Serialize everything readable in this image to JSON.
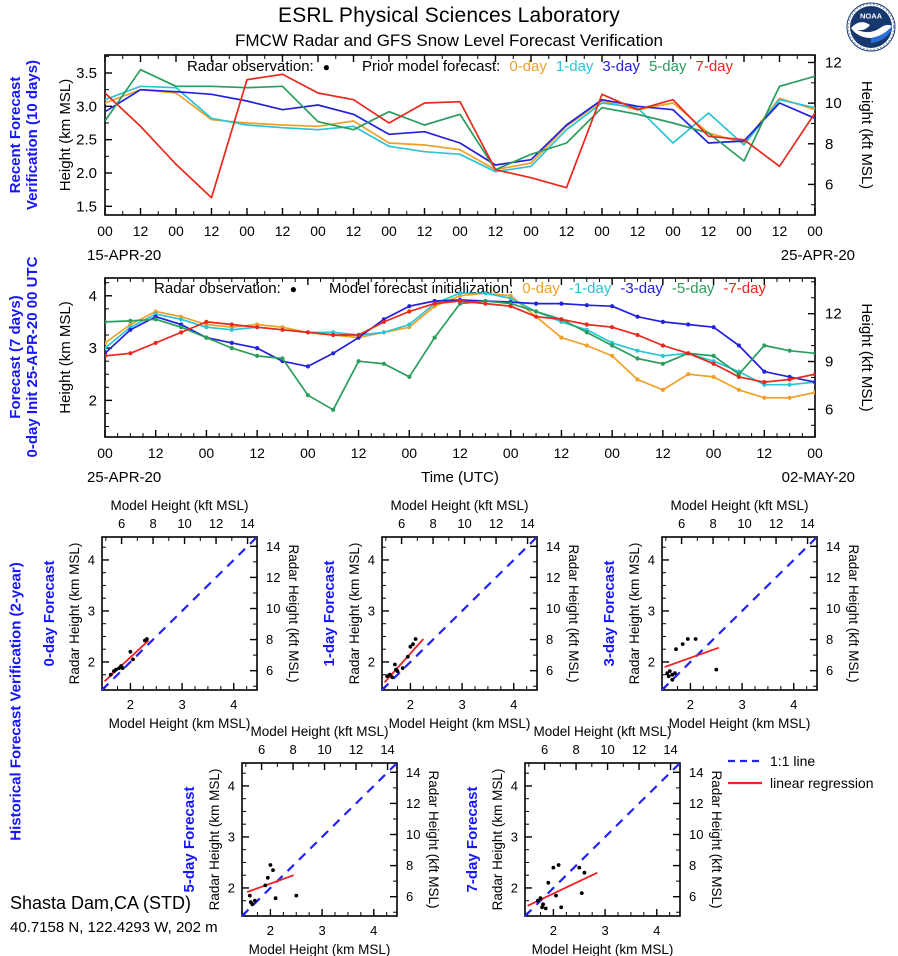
{
  "page": {
    "title": "ESRL Physical Sciences Laboratory",
    "subtitle": "FMCW Radar and GFS Snow Level Forecast Verification",
    "station_name": "Shasta Dam,CA (STD)",
    "station_coords": "40.7158 N, 122.4293 W, 202 m",
    "logo_text": "NOAA"
  },
  "colors": {
    "label_blue": "#1616ff",
    "series_0day": "#f0a028",
    "series_1day": "#29c5d6",
    "series_3day": "#2222dd",
    "series_5day": "#2a9d5c",
    "series_7day": "#e8291c",
    "one_to_one": "#2222ff",
    "regression": "#ee2222",
    "radar_dot": "#000000"
  },
  "bottom_legend": {
    "one_to_one_label": "1:1 line",
    "regression_label": "linear regression"
  },
  "chart_data": [
    {
      "id": "plot1",
      "type": "line",
      "side_label_lines": [
        "Recent Forecast",
        "Verification (10 days)"
      ],
      "legend_prefix": "Radar observation:",
      "legend_dot": "●",
      "legend_label": "Prior model forecast:",
      "ylabel_left": "Height (km MSL)",
      "ylabel_right": "Height (kft MSL)",
      "x_tick_labels": [
        "00",
        "12",
        "00",
        "12",
        "00",
        "12",
        "00",
        "12",
        "00",
        "12",
        "00",
        "12",
        "00",
        "12",
        "00",
        "12",
        "00",
        "12",
        "00",
        "12",
        "00"
      ],
      "x_date_left": "15-APR-20",
      "x_date_right": "25-APR-20",
      "x_axis_title": "",
      "ylim": [
        1.37,
        3.77
      ],
      "yticks_km": [
        1.5,
        2.0,
        2.5,
        3.0,
        3.5
      ],
      "ytick_km_labels": [
        "1.5",
        "2.0",
        "2.5",
        "3.0",
        "3.5"
      ],
      "yticks_kft": [
        6,
        8,
        10,
        12
      ],
      "minor_per_major_x": 1,
      "markers": false,
      "series": [
        {
          "name": "0-day",
          "color_key": "series_0day",
          "values": [
            3.05,
            3.25,
            3.2,
            2.8,
            2.75,
            2.72,
            2.7,
            2.78,
            2.45,
            2.42,
            2.35,
            2.05,
            2.15,
            2.7,
            3.08,
            2.95,
            3.05,
            2.6,
            2.45,
            3.12,
            2.95
          ]
        },
        {
          "name": "1-day",
          "color_key": "series_1day",
          "values": [
            3.1,
            3.3,
            3.28,
            2.82,
            2.72,
            2.68,
            2.65,
            2.7,
            2.4,
            2.32,
            2.28,
            2.02,
            2.1,
            2.65,
            3.05,
            2.98,
            2.45,
            2.9,
            2.42,
            3.1,
            2.98
          ]
        },
        {
          "name": "3-day",
          "color_key": "series_3day",
          "values": [
            2.92,
            3.25,
            3.22,
            3.18,
            3.08,
            2.95,
            3.02,
            2.88,
            2.58,
            2.62,
            2.45,
            2.12,
            2.2,
            2.72,
            3.1,
            3.0,
            2.95,
            2.45,
            2.48,
            3.05,
            2.82
          ]
        },
        {
          "name": "5-day",
          "color_key": "series_5day",
          "values": [
            2.78,
            3.55,
            3.3,
            3.3,
            3.28,
            3.3,
            2.77,
            2.65,
            2.92,
            2.72,
            2.88,
            2.05,
            2.28,
            2.45,
            2.98,
            2.88,
            2.75,
            2.6,
            2.18,
            3.3,
            3.45
          ]
        },
        {
          "name": "7-day",
          "color_key": "series_7day",
          "values": [
            3.2,
            2.7,
            2.13,
            1.63,
            3.4,
            3.48,
            3.2,
            3.1,
            2.75,
            3.05,
            3.07,
            2.05,
            1.93,
            1.78,
            3.18,
            2.95,
            3.1,
            2.55,
            2.5,
            2.1,
            2.9
          ]
        }
      ]
    },
    {
      "id": "plot2",
      "type": "line",
      "side_label_lines": [
        "Forecast (7 days)",
        "0-day Init 25-APR-20 00 UTC"
      ],
      "legend_prefix": "Radar observation:",
      "legend_dot": "●",
      "legend_label": "Model forecast initialization:",
      "ylabel_left": "Height (km MSL)",
      "ylabel_right": "Height (kft MSL)",
      "x_tick_labels": [
        "00",
        "12",
        "00",
        "12",
        "00",
        "12",
        "00",
        "12",
        "00",
        "12",
        "00",
        "12",
        "00",
        "12",
        "00"
      ],
      "x_date_left": "25-APR-20",
      "x_date_right": "02-MAY-20",
      "x_axis_title": "Time (UTC)",
      "ylim": [
        1.3,
        4.34
      ],
      "yticks_km": [
        2,
        3,
        4
      ],
      "ytick_km_labels": [
        "2",
        "3",
        "4"
      ],
      "yticks_kft": [
        6,
        9,
        12
      ],
      "minor_per_major_x": 3,
      "markers": true,
      "series": [
        {
          "name": "0-day",
          "color_key": "series_0day",
          "values": [
            3.1,
            3.45,
            3.7,
            3.6,
            3.45,
            3.4,
            3.45,
            3.4,
            3.3,
            3.25,
            3.2,
            3.3,
            3.4,
            3.8,
            4.0,
            4.05,
            4.0,
            3.6,
            3.2,
            3.05,
            2.85,
            2.4,
            2.2,
            2.5,
            2.45,
            2.2,
            2.05,
            2.05,
            2.15
          ]
        },
        {
          "name": "-1-day",
          "color_key": "series_1day",
          "values": [
            3.0,
            3.4,
            3.65,
            3.55,
            3.4,
            3.35,
            3.4,
            3.35,
            3.3,
            3.3,
            3.25,
            3.3,
            3.45,
            3.85,
            4.05,
            4.05,
            3.95,
            3.7,
            3.5,
            3.35,
            3.1,
            2.95,
            2.85,
            2.9,
            2.75,
            2.55,
            2.3,
            2.3,
            2.35
          ]
        },
        {
          "name": "-3-day",
          "color_key": "series_3day",
          "values": [
            2.9,
            3.35,
            3.6,
            3.45,
            3.2,
            3.1,
            3.0,
            2.75,
            2.65,
            2.9,
            3.2,
            3.55,
            3.8,
            3.9,
            3.92,
            3.9,
            3.88,
            3.85,
            3.85,
            3.82,
            3.8,
            3.6,
            3.5,
            3.45,
            3.4,
            3.05,
            2.55,
            2.45,
            2.35
          ]
        },
        {
          "name": "-5-day",
          "color_key": "series_5day",
          "values": [
            3.5,
            3.52,
            3.55,
            3.4,
            3.2,
            3.0,
            2.85,
            2.8,
            2.1,
            1.82,
            2.75,
            2.7,
            2.45,
            3.2,
            3.85,
            3.9,
            3.85,
            3.7,
            3.55,
            3.3,
            3.05,
            2.8,
            2.7,
            2.9,
            2.85,
            2.5,
            3.05,
            2.95,
            2.9
          ]
        },
        {
          "name": "-7-day",
          "color_key": "series_7day",
          "values": [
            2.85,
            2.9,
            3.1,
            3.3,
            3.5,
            3.45,
            3.4,
            3.35,
            3.3,
            3.25,
            3.25,
            3.5,
            3.7,
            3.85,
            3.9,
            3.85,
            3.8,
            3.6,
            3.55,
            3.45,
            3.4,
            3.25,
            3.05,
            2.9,
            2.7,
            2.45,
            2.35,
            2.4,
            2.5
          ]
        }
      ]
    },
    {
      "id": "scatter-0day",
      "type": "scatter",
      "title": "0-day Forecast",
      "xlabel_top": "Model Height (kft MSL)",
      "xlabel_bottom": "Model Height (km MSL)",
      "ylabel_left": "Radar Height (km MSL)",
      "ylabel_right": "Radar Height (kft MSL)",
      "lim": [
        1.45,
        4.45
      ],
      "km_ticks": [
        2,
        3,
        4
      ],
      "kft_ticks": [
        6,
        8,
        10,
        12,
        14
      ],
      "points": [
        [
          1.62,
          1.75
        ],
        [
          1.68,
          1.82
        ],
        [
          1.72,
          1.85
        ],
        [
          1.78,
          1.88
        ],
        [
          1.82,
          1.92
        ],
        [
          1.85,
          1.88
        ],
        [
          2.0,
          2.2
        ],
        [
          2.05,
          2.05
        ],
        [
          2.28,
          2.42
        ],
        [
          2.32,
          2.45
        ]
      ],
      "regression": [
        [
          1.5,
          1.62
        ],
        [
          2.35,
          2.42
        ]
      ]
    },
    {
      "id": "scatter-1day",
      "type": "scatter",
      "title": "1-day Forecast",
      "xlabel_top": "Model Height (kft MSL)",
      "xlabel_bottom": "Model Height (km MSL)",
      "ylabel_left": "Radar Height (km MSL)",
      "ylabel_right": "Radar Height (kft MSL)",
      "lim": [
        1.45,
        4.45
      ],
      "km_ticks": [
        2,
        3,
        4
      ],
      "kft_ticks": [
        6,
        8,
        10,
        12,
        14
      ],
      "points": [
        [
          1.55,
          1.72
        ],
        [
          1.6,
          1.75
        ],
        [
          1.65,
          1.7
        ],
        [
          1.7,
          1.95
        ],
        [
          1.72,
          1.85
        ],
        [
          1.75,
          1.82
        ],
        [
          1.85,
          1.88
        ],
        [
          1.95,
          2.1
        ],
        [
          2.0,
          2.3
        ],
        [
          2.05,
          2.35
        ],
        [
          2.1,
          2.45
        ]
      ],
      "regression": [
        [
          1.5,
          1.6
        ],
        [
          2.25,
          2.45
        ]
      ]
    },
    {
      "id": "scatter-3day",
      "type": "scatter",
      "title": "3-day Forecast",
      "xlabel_top": "Model Height (kft MSL)",
      "xlabel_bottom": "Model Height (km MSL)",
      "ylabel_left": "Radar Height (km MSL)",
      "ylabel_right": "Radar Height (kft MSL)",
      "lim": [
        1.45,
        4.45
      ],
      "km_ticks": [
        2,
        3,
        4
      ],
      "kft_ticks": [
        6,
        8,
        10,
        12,
        14
      ],
      "points": [
        [
          1.55,
          1.78
        ],
        [
          1.58,
          1.72
        ],
        [
          1.6,
          1.82
        ],
        [
          1.65,
          1.75
        ],
        [
          1.65,
          1.65
        ],
        [
          1.7,
          1.78
        ],
        [
          1.72,
          2.25
        ],
        [
          1.85,
          2.35
        ],
        [
          1.95,
          2.45
        ],
        [
          2.1,
          2.45
        ],
        [
          2.5,
          1.85
        ]
      ],
      "regression": [
        [
          1.5,
          1.9
        ],
        [
          2.55,
          2.28
        ]
      ]
    },
    {
      "id": "scatter-5day",
      "type": "scatter",
      "title": "5-day Forecast",
      "xlabel_top": "Model Height (kft MSL)",
      "xlabel_bottom": "Model Height (km MSL)",
      "ylabel_left": "Radar Height (km MSL)",
      "ylabel_right": "Radar Height (kft MSL)",
      "lim": [
        1.45,
        4.45
      ],
      "km_ticks": [
        2,
        3,
        4
      ],
      "kft_ticks": [
        6,
        8,
        10,
        12,
        14
      ],
      "points": [
        [
          1.6,
          1.85
        ],
        [
          1.62,
          1.72
        ],
        [
          1.65,
          1.68
        ],
        [
          1.7,
          1.75
        ],
        [
          1.9,
          2.05
        ],
        [
          1.95,
          2.2
        ],
        [
          2.0,
          2.45
        ],
        [
          2.05,
          2.35
        ],
        [
          2.1,
          1.8
        ],
        [
          2.5,
          1.85
        ]
      ],
      "regression": [
        [
          1.55,
          1.92
        ],
        [
          2.45,
          2.25
        ]
      ]
    },
    {
      "id": "scatter-7day",
      "type": "scatter",
      "title": "7-day Forecast",
      "xlabel_top": "Model Height (kft MSL)",
      "xlabel_bottom": "Model Height (km MSL)",
      "ylabel_left": "Radar Height (km MSL)",
      "ylabel_right": "Radar Height (kft MSL)",
      "lim": [
        1.45,
        4.45
      ],
      "km_ticks": [
        2,
        3,
        4
      ],
      "kft_ticks": [
        6,
        8,
        10,
        12,
        14
      ],
      "points": [
        [
          1.7,
          1.75
        ],
        [
          1.75,
          1.8
        ],
        [
          1.78,
          1.62
        ],
        [
          1.8,
          1.68
        ],
        [
          1.85,
          1.6
        ],
        [
          1.9,
          2.1
        ],
        [
          2.0,
          2.4
        ],
        [
          2.05,
          1.85
        ],
        [
          2.1,
          2.45
        ],
        [
          2.15,
          1.62
        ],
        [
          2.5,
          2.4
        ],
        [
          2.55,
          1.9
        ],
        [
          2.6,
          2.3
        ]
      ],
      "regression": [
        [
          1.5,
          1.65
        ],
        [
          2.85,
          2.3
        ]
      ]
    }
  ]
}
